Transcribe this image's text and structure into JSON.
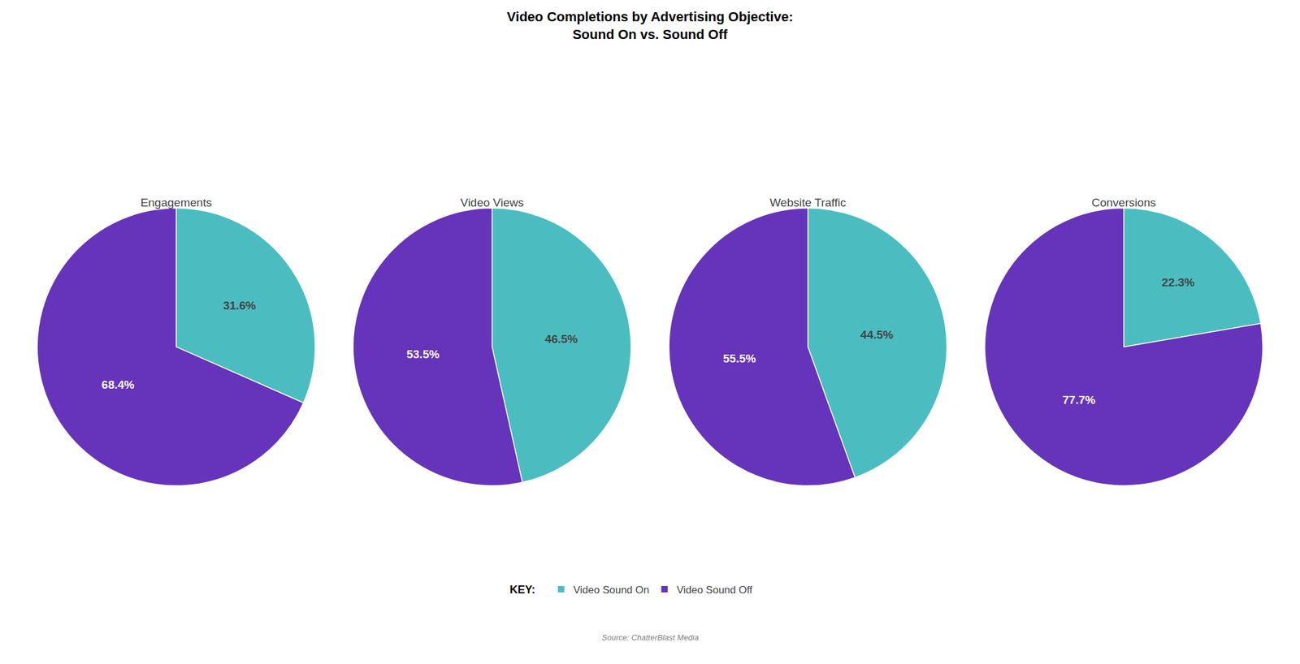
{
  "chart_data": {
    "type": "pie",
    "title": "Video Completions by Advertising Objective:\nSound On vs. Sound Off",
    "categories": [
      "Video Sound On",
      "Video Sound Off"
    ],
    "colors": [
      "#4BBDC0",
      "#6633BB"
    ],
    "series": [
      {
        "name": "Engagements",
        "values": [
          31.6,
          68.4
        ],
        "value_labels": [
          "31.6%",
          "68.4%"
        ]
      },
      {
        "name": "Video Views",
        "values": [
          46.5,
          53.5
        ],
        "value_labels": [
          "46.5%",
          "53.5%"
        ]
      },
      {
        "name": "Website Traffic",
        "values": [
          44.5,
          55.5
        ],
        "value_labels": [
          "44.5%",
          "55.5%"
        ]
      },
      {
        "name": "Conversions",
        "values": [
          22.3,
          77.7
        ],
        "value_labels": [
          "22.3%",
          "77.7%"
        ]
      }
    ],
    "data_labels": true,
    "legend": "bottom",
    "annotations": [
      "KEY:",
      "Source: ChatterBlast Media"
    ]
  }
}
